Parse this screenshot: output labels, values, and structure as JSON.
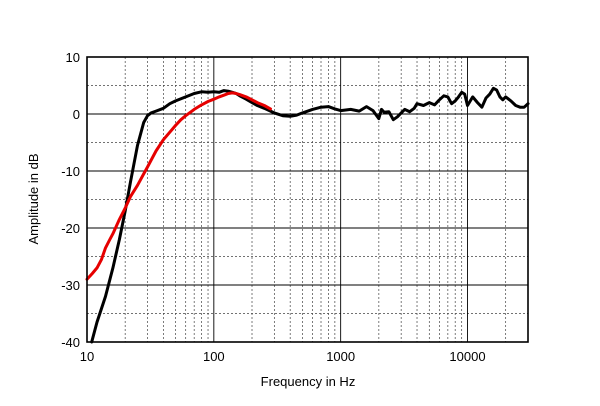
{
  "chart_data": {
    "type": "line",
    "title": "",
    "xlabel": "Frequency in Hz",
    "ylabel": "Amplitude in dB",
    "x_scale": "log",
    "xlim": [
      10,
      30000
    ],
    "ylim": [
      -40,
      10
    ],
    "x_ticks": [
      {
        "value": 10,
        "label": "10"
      },
      {
        "value": 100,
        "label": "100"
      },
      {
        "value": 1000,
        "label": "1000"
      },
      {
        "value": 10000,
        "label": "10000"
      }
    ],
    "y_ticks": [
      {
        "value": 10,
        "label": "10"
      },
      {
        "value": 0,
        "label": "0"
      },
      {
        "value": -10,
        "label": "-10"
      },
      {
        "value": -20,
        "label": "-20"
      },
      {
        "value": -30,
        "label": "-30"
      },
      {
        "value": -40,
        "label": "-40"
      }
    ],
    "grid": true,
    "series": [
      {
        "color": "#000000",
        "x": [
          10.9,
          12,
          14,
          16,
          18,
          20,
          22,
          25,
          28,
          30,
          32,
          35,
          40,
          45,
          50,
          60,
          70,
          80,
          90,
          100,
          110,
          120,
          130,
          140,
          150,
          160,
          180,
          200,
          220,
          250,
          280,
          300,
          350,
          400,
          450,
          500,
          600,
          700,
          800,
          900,
          1000,
          1200,
          1400,
          1600,
          1800,
          2000,
          2100,
          2200,
          2400,
          2600,
          2800,
          3000,
          3200,
          3500,
          3800,
          4000,
          4500,
          5000,
          5500,
          6000,
          6500,
          7000,
          7500,
          8000,
          8500,
          9000,
          9500,
          10000,
          11000,
          12000,
          13000,
          14000,
          15000,
          16000,
          17000,
          18000,
          19000,
          20000,
          22000,
          24000,
          26000,
          28000,
          30000
        ],
        "y": [
          -40,
          -36.5,
          -32,
          -27,
          -22,
          -17,
          -12,
          -5.5,
          -1.5,
          -0.3,
          0.2,
          0.5,
          1.0,
          1.8,
          2.3,
          3.0,
          3.6,
          3.9,
          3.8,
          3.9,
          3.8,
          4.1,
          4.0,
          3.8,
          3.6,
          3.2,
          2.6,
          2.0,
          1.5,
          1.0,
          0.5,
          0.2,
          -0.3,
          -0.4,
          -0.2,
          0.2,
          0.8,
          1.2,
          1.3,
          0.9,
          0.6,
          0.8,
          0.5,
          1.3,
          0.6,
          -0.8,
          0.8,
          0.3,
          0.4,
          -1.0,
          -0.5,
          0.2,
          0.8,
          0.4,
          1.0,
          1.8,
          1.5,
          2.0,
          1.6,
          2.5,
          3.2,
          3.0,
          1.8,
          2.3,
          3.0,
          3.8,
          3.5,
          1.5,
          3.0,
          2.0,
          1.2,
          2.8,
          3.5,
          4.5,
          4.2,
          3.0,
          2.5,
          3.0,
          2.3,
          1.5,
          1.2,
          1.2,
          1.8
        ]
      },
      {
        "color": "#e60000",
        "x": [
          10,
          11,
          12,
          13,
          14,
          15,
          16,
          18,
          20,
          22,
          25,
          28,
          30,
          35,
          40,
          45,
          50,
          55,
          60,
          70,
          80,
          90,
          100,
          110,
          120,
          130,
          140,
          150,
          160,
          180,
          200,
          220,
          250,
          280
        ],
        "y": [
          -29,
          -28,
          -27,
          -25.5,
          -23.5,
          -22.2,
          -21,
          -18.5,
          -16.5,
          -14.5,
          -12.5,
          -10.5,
          -9.3,
          -6.5,
          -4.5,
          -3.2,
          -2.0,
          -1.0,
          -0.3,
          0.8,
          1.6,
          2.2,
          2.6,
          3.0,
          3.3,
          3.6,
          3.7,
          3.6,
          3.4,
          3.0,
          2.5,
          2.0,
          1.5,
          0.9
        ]
      }
    ]
  }
}
